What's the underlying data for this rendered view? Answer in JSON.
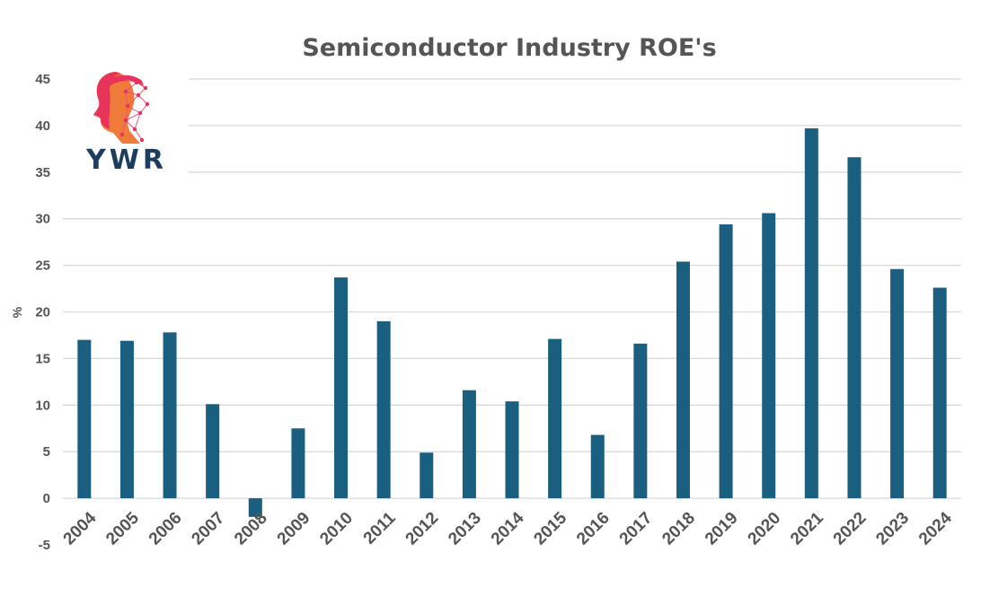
{
  "chart_data": {
    "type": "bar",
    "title": "Semiconductor Industry ROE's",
    "ylabel": "%",
    "xlabel": "",
    "ylim": [
      -5,
      45
    ],
    "yticks": [
      -5,
      0,
      5,
      10,
      15,
      20,
      25,
      30,
      35,
      40,
      45
    ],
    "grid": true,
    "legend": "none",
    "bar_color": "#1b5f80",
    "categories": [
      "2004",
      "2005",
      "2006",
      "2007",
      "2008",
      "2009",
      "2010",
      "2011",
      "2012",
      "2013",
      "2014",
      "2015",
      "2016",
      "2017",
      "2018",
      "2019",
      "2020",
      "2021",
      "2022",
      "2023",
      "2024"
    ],
    "values": [
      17.0,
      16.9,
      17.8,
      10.1,
      -2.0,
      7.5,
      23.7,
      19.0,
      4.9,
      11.6,
      10.4,
      17.1,
      6.8,
      16.6,
      25.4,
      29.4,
      30.6,
      39.7,
      36.6,
      24.6,
      22.6
    ]
  },
  "logo": {
    "text": "YWR",
    "icon": "head-network-icon",
    "colors": [
      "#e8345a",
      "#f28a2e",
      "#d4386b"
    ]
  }
}
